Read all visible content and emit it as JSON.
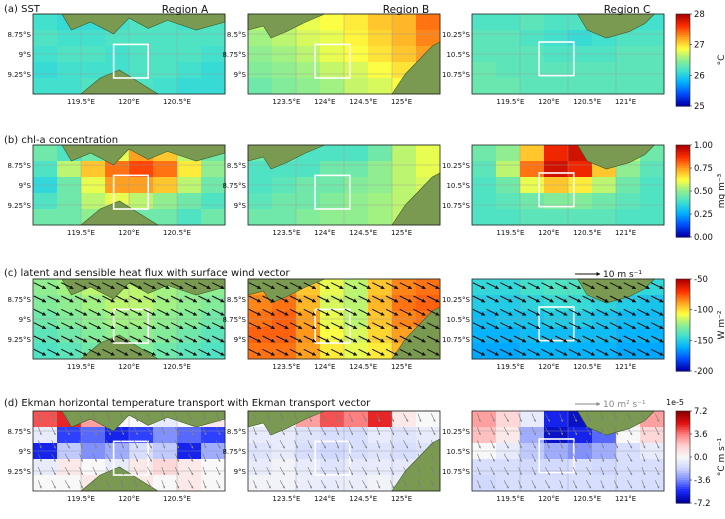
{
  "chart_data": {
    "type": "heatmap",
    "regions": [
      "Region A",
      "Region B",
      "Region C"
    ],
    "panels": [
      {
        "label": "(a) SST",
        "colorbar": {
          "colors": [
            "#0000b0",
            "#0050ff",
            "#00b0ff",
            "#40e0d0",
            "#90ee90",
            "#ffff40",
            "#ffa020",
            "#ff3000",
            "#b00000"
          ],
          "min": 25,
          "max": 28,
          "ticks": [
            "28",
            "27",
            "26",
            "25"
          ],
          "unit": "°C"
        },
        "maps": [
          {
            "field": [
              [
                0.38,
                0.36,
                0.36,
                0.38,
                0.4,
                0.4,
                0.38,
                0.4
              ],
              [
                0.4,
                0.38,
                0.38,
                0.4,
                0.4,
                0.4,
                0.4,
                0.4
              ],
              [
                0.38,
                0.4,
                0.4,
                0.38,
                0.4,
                0.4,
                0.4,
                0.38
              ],
              [
                0.36,
                0.38,
                0.38,
                0.38,
                0.4,
                0.4,
                0.38,
                0.36
              ],
              [
                0.38,
                0.38,
                0.4,
                0.4,
                0.4,
                0.38,
                0.36,
                0.36
              ]
            ]
          },
          {
            "field": [
              [
                0.55,
                0.55,
                0.6,
                0.62,
                0.65,
                0.7,
                0.72,
                0.8
              ],
              [
                0.52,
                0.55,
                0.58,
                0.6,
                0.64,
                0.68,
                0.72,
                0.78
              ],
              [
                0.5,
                0.52,
                0.55,
                0.6,
                0.62,
                0.66,
                0.7,
                0.75
              ],
              [
                0.48,
                0.5,
                0.52,
                0.56,
                0.58,
                0.62,
                0.66,
                0.7
              ],
              [
                0.45,
                0.48,
                0.5,
                0.52,
                0.56,
                0.58,
                0.62,
                0.66
              ]
            ]
          },
          {
            "field": [
              [
                0.4,
                0.4,
                0.42,
                0.4,
                0.4,
                0.4,
                0.38,
                0.38
              ],
              [
                0.42,
                0.42,
                0.4,
                0.38,
                0.36,
                0.38,
                0.4,
                0.4
              ],
              [
                0.42,
                0.42,
                0.42,
                0.4,
                0.4,
                0.4,
                0.42,
                0.42
              ],
              [
                0.44,
                0.42,
                0.42,
                0.42,
                0.42,
                0.42,
                0.42,
                0.42
              ],
              [
                0.44,
                0.44,
                0.42,
                0.42,
                0.42,
                0.42,
                0.42,
                0.42
              ]
            ]
          }
        ]
      },
      {
        "label": "(b) chl-a concentration",
        "colorbar": {
          "colors": [
            "#0000b0",
            "#0050ff",
            "#00b0ff",
            "#40e0d0",
            "#90ee90",
            "#ffff40",
            "#ffa020",
            "#ff3000",
            "#b00000"
          ],
          "min": 0,
          "max": 1,
          "ticks": [
            "1.00",
            "0.75",
            "0.50",
            "0.25",
            "0.00"
          ],
          "unit": "mg m⁻³"
        },
        "maps": [
          {
            "field": [
              [
                0.45,
                0.4,
                0.45,
                0.6,
                0.75,
                0.7,
                0.55,
                0.45
              ],
              [
                0.4,
                0.55,
                0.7,
                0.8,
                0.85,
                0.8,
                0.65,
                0.5
              ],
              [
                0.35,
                0.45,
                0.6,
                0.75,
                0.75,
                0.7,
                0.55,
                0.45
              ],
              [
                0.4,
                0.45,
                0.55,
                0.6,
                0.55,
                0.5,
                0.45,
                0.4
              ],
              [
                0.45,
                0.45,
                0.5,
                0.5,
                0.45,
                0.45,
                0.4,
                0.45
              ]
            ]
          },
          {
            "field": [
              [
                0.45,
                0.45,
                0.4,
                0.4,
                0.4,
                0.45,
                0.55,
                0.6
              ],
              [
                0.4,
                0.4,
                0.4,
                0.45,
                0.45,
                0.5,
                0.55,
                0.6
              ],
              [
                0.4,
                0.42,
                0.45,
                0.45,
                0.48,
                0.5,
                0.55,
                0.58
              ],
              [
                0.42,
                0.45,
                0.45,
                0.48,
                0.5,
                0.52,
                0.55,
                0.55
              ],
              [
                0.45,
                0.45,
                0.48,
                0.5,
                0.5,
                0.52,
                0.55,
                0.55
              ]
            ]
          },
          {
            "field": [
              [
                0.45,
                0.5,
                0.7,
                0.9,
                0.95,
                0.8,
                0.55,
                0.45
              ],
              [
                0.42,
                0.55,
                0.8,
                0.95,
                0.9,
                0.7,
                0.5,
                0.42
              ],
              [
                0.4,
                0.45,
                0.6,
                0.7,
                0.65,
                0.55,
                0.45,
                0.4
              ],
              [
                0.4,
                0.42,
                0.45,
                0.48,
                0.48,
                0.45,
                0.42,
                0.4
              ],
              [
                0.4,
                0.4,
                0.42,
                0.42,
                0.42,
                0.42,
                0.4,
                0.4
              ]
            ]
          }
        ]
      },
      {
        "label": "(c) latent and sensible heat flux with surface wind vector",
        "colorbar": {
          "colors": [
            "#0000b0",
            "#0050ff",
            "#00b0ff",
            "#40e0d0",
            "#90ee90",
            "#ffff40",
            "#ffa020",
            "#ff3000",
            "#b00000"
          ],
          "min": -200,
          "max": -50,
          "ticks": [
            "-50",
            "-100",
            "-150",
            "-200"
          ],
          "unit": "W m⁻²"
        },
        "vector_key": "10 m s⁻¹",
        "maps": [
          {
            "field": [
              [
                0.5,
                0.52,
                0.55,
                0.55,
                0.55,
                0.52,
                0.5,
                0.5
              ],
              [
                0.48,
                0.5,
                0.52,
                0.55,
                0.55,
                0.52,
                0.5,
                0.48
              ],
              [
                0.45,
                0.48,
                0.5,
                0.52,
                0.52,
                0.5,
                0.48,
                0.45
              ],
              [
                0.42,
                0.45,
                0.48,
                0.5,
                0.5,
                0.48,
                0.45,
                0.42
              ],
              [
                0.4,
                0.42,
                0.45,
                0.48,
                0.48,
                0.45,
                0.42,
                0.4
              ]
            ]
          },
          {
            "field": [
              [
                0.75,
                0.78,
                0.7,
                0.6,
                0.55,
                0.7,
                0.78,
                0.8
              ],
              [
                0.78,
                0.8,
                0.72,
                0.58,
                0.55,
                0.72,
                0.8,
                0.82
              ],
              [
                0.8,
                0.82,
                0.75,
                0.6,
                0.55,
                0.7,
                0.78,
                0.8
              ],
              [
                0.82,
                0.82,
                0.76,
                0.62,
                0.58,
                0.68,
                0.75,
                0.78
              ],
              [
                0.8,
                0.8,
                0.75,
                0.65,
                0.6,
                0.65,
                0.72,
                0.75
              ]
            ]
          },
          {
            "field": [
              [
                0.35,
                0.35,
                0.38,
                0.4,
                0.4,
                0.38,
                0.36,
                0.35
              ],
              [
                0.32,
                0.32,
                0.34,
                0.36,
                0.36,
                0.34,
                0.32,
                0.3
              ],
              [
                0.28,
                0.3,
                0.3,
                0.32,
                0.32,
                0.3,
                0.28,
                0.28
              ],
              [
                0.26,
                0.26,
                0.28,
                0.28,
                0.28,
                0.28,
                0.26,
                0.26
              ],
              [
                0.24,
                0.24,
                0.26,
                0.26,
                0.26,
                0.26,
                0.24,
                0.24
              ]
            ]
          }
        ]
      },
      {
        "label": "(d) Ekman horizontal temperature transport with Ekman transport vector",
        "colorbar": {
          "colors": [
            "#0000a0",
            "#1a2cff",
            "#8090ff",
            "#d0d8ff",
            "#f8f8f8",
            "#ffd0d0",
            "#ff8080",
            "#e01010",
            "#900000"
          ],
          "min": -7.2e-05,
          "max": 7.2e-05,
          "ticks": [
            "7.2",
            "3.6",
            "0.0",
            "-3.6",
            "-7.2"
          ],
          "offset_label": "1e-5",
          "unit": "°C m s⁻¹"
        },
        "vector_key": "10 m² s⁻¹",
        "maps": [
          {
            "field": [
              [
                0.8,
                0.85,
                0.7,
                0.5,
                0.5,
                0.45,
                0.5,
                0.55
              ],
              [
                0.45,
                0.15,
                0.2,
                0.1,
                0.15,
                0.25,
                0.2,
                0.15
              ],
              [
                0.1,
                0.35,
                0.25,
                0.3,
                0.4,
                0.35,
                0.1,
                0.3
              ],
              [
                0.45,
                0.55,
                0.5,
                0.45,
                0.55,
                0.6,
                0.55,
                0.5
              ],
              [
                0.5,
                0.5,
                0.55,
                0.58,
                0.55,
                0.5,
                0.55,
                0.5
              ]
            ]
          },
          {
            "field": [
              [
                0.5,
                0.5,
                0.7,
                0.8,
                0.75,
                0.85,
                0.55,
                0.5
              ],
              [
                0.45,
                0.45,
                0.42,
                0.4,
                0.4,
                0.45,
                0.42,
                0.45
              ],
              [
                0.42,
                0.45,
                0.4,
                0.38,
                0.4,
                0.42,
                0.4,
                0.42
              ],
              [
                0.45,
                0.48,
                0.45,
                0.42,
                0.44,
                0.45,
                0.44,
                0.45
              ],
              [
                0.48,
                0.48,
                0.46,
                0.45,
                0.46,
                0.48,
                0.46,
                0.48
              ]
            ]
          },
          {
            "field": [
              [
                0.7,
                0.6,
                0.45,
                0.1,
                0.05,
                0.15,
                0.55,
                0.7
              ],
              [
                0.65,
                0.55,
                0.3,
                0.05,
                0.1,
                0.2,
                0.5,
                0.6
              ],
              [
                0.5,
                0.45,
                0.35,
                0.3,
                0.25,
                0.3,
                0.4,
                0.45
              ],
              [
                0.4,
                0.4,
                0.38,
                0.38,
                0.4,
                0.38,
                0.4,
                0.4
              ],
              [
                0.38,
                0.4,
                0.4,
                0.4,
                0.4,
                0.4,
                0.4,
                0.4
              ]
            ]
          }
        ]
      }
    ],
    "columns": [
      {
        "xticks": [
          "119.5°E",
          "120°E",
          "120.5°E"
        ],
        "yticks": [
          "8.75°S",
          "9°S",
          "9.25°S"
        ]
      },
      {
        "xticks": [
          "123.5°E",
          "124°E",
          "124.5°E",
          "125°E"
        ],
        "yticks": [
          "8.5°S",
          "8.75°S",
          "9°S"
        ]
      },
      {
        "xticks": [
          "119.5°E",
          "120°E",
          "120.5°E",
          "121°E"
        ],
        "yticks": [
          "10.25°S",
          "10.5°S",
          "10.75°S"
        ]
      }
    ],
    "land_color": "#7a9a52",
    "box_color": "#ffffff"
  }
}
